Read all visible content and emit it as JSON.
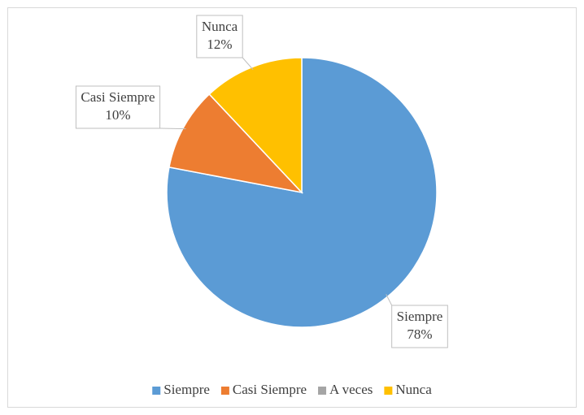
{
  "chart_data": {
    "type": "pie",
    "categories": [
      "Siempre",
      "Casi Siempre",
      "A veces",
      "Nunca"
    ],
    "values": [
      78,
      10,
      0,
      12
    ],
    "value_labels": [
      "78%",
      "10%",
      null,
      "12%"
    ],
    "colors": [
      "#5b9bd5",
      "#ed7d31",
      "#a5a5a5",
      "#ffc000"
    ],
    "legend": "bottom"
  }
}
